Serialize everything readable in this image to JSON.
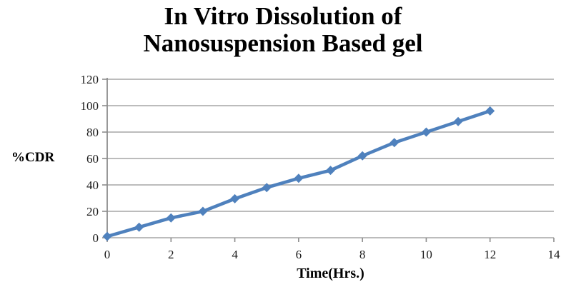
{
  "title": {
    "line1": "In Vitro Dissolution of",
    "line2": "Nanosuspension Based gel"
  },
  "colors": {
    "line": "#4F81BD",
    "gridline": "#A6A6A6",
    "axis": "#8C8C8C",
    "text": "#1a1a1a"
  },
  "chart_data": {
    "type": "line",
    "title": "In Vitro Dissolution of Nanosuspension Based gel",
    "xlabel": "Time(Hrs.)",
    "ylabel": "%CDR",
    "x": [
      0,
      1,
      2,
      3,
      4,
      5,
      6,
      7,
      8,
      9,
      10,
      11,
      12
    ],
    "series": [
      {
        "name": "%CDR",
        "values": [
          1,
          8,
          15,
          20,
          29.5,
          38,
          45,
          51,
          62,
          72,
          80,
          88,
          96
        ]
      }
    ],
    "xlim": [
      0,
      14
    ],
    "ylim": [
      0,
      120
    ],
    "x_ticks": [
      0,
      2,
      4,
      6,
      8,
      10,
      12,
      14
    ],
    "y_ticks": [
      0,
      20,
      40,
      60,
      80,
      100,
      120
    ],
    "grid": "horizontal",
    "legend": "none",
    "marker": "diamond"
  }
}
